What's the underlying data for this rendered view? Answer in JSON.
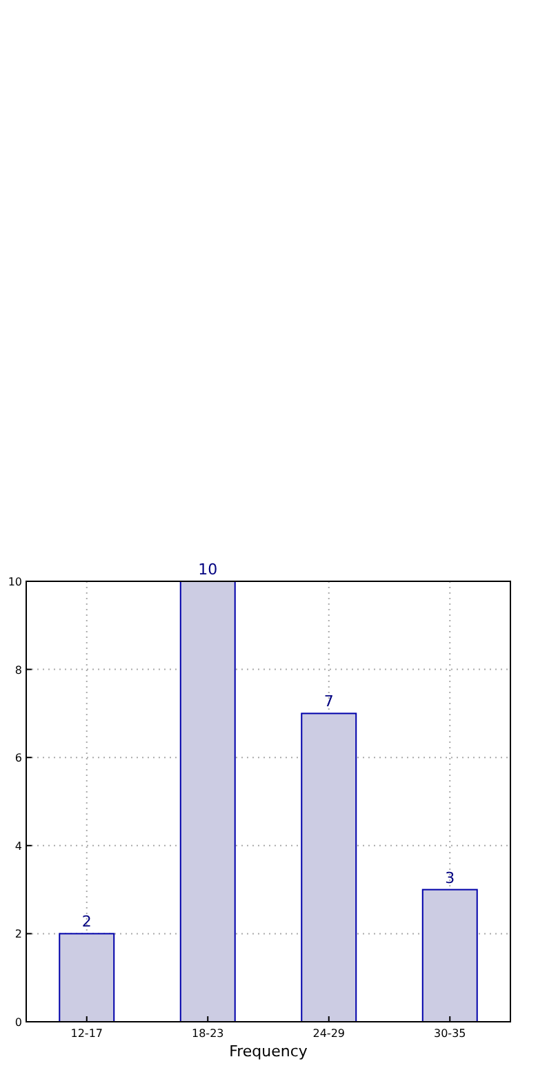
{
  "chart_data": {
    "type": "bar",
    "xlabel": "Frequency",
    "categories": [
      "12-17",
      "18-23",
      "24-29",
      "30-35"
    ],
    "values": [
      2,
      10,
      7,
      3
    ],
    "color": "#ccccE3",
    "ylim": [
      0,
      10
    ],
    "yticks": [
      0,
      2,
      4,
      6,
      8,
      10
    ],
    "grid": true,
    "data_labels": true
  }
}
